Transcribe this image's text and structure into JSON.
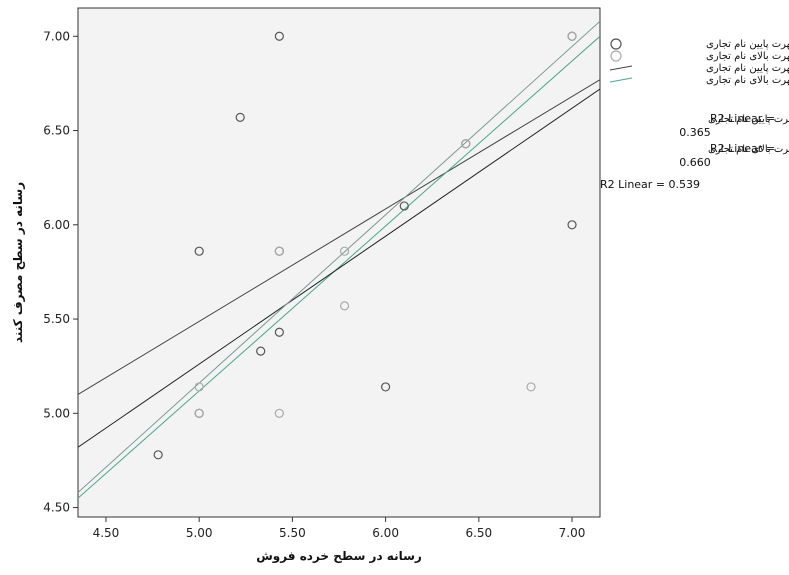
{
  "chart_data": {
    "type": "scatter",
    "xlabel": "رسانه در سطح خرده فروش",
    "ylabel": "رسانه در سطح مصرف كنند",
    "xlim": [
      4.35,
      7.15
    ],
    "ylim": [
      4.45,
      7.15
    ],
    "x_ticks": [
      "4.50",
      "5.00",
      "5.50",
      "6.00",
      "6.50",
      "7.00"
    ],
    "y_ticks": [
      "4.50",
      "5.00",
      "5.50",
      "6.00",
      "6.50",
      "7.00"
    ],
    "grid": false,
    "series": [
      {
        "name": "شهرت پايين نام تجاری",
        "marker": "circle",
        "color": "#555555",
        "points": [
          [
            5.43,
            7.0
          ],
          [
            7.0,
            7.0
          ],
          [
            5.22,
            6.57
          ],
          [
            6.43,
            6.43
          ],
          [
            6.1,
            6.1
          ],
          [
            7.0,
            6.0
          ],
          [
            5.0,
            5.86
          ],
          [
            5.43,
            5.86
          ],
          [
            5.43,
            5.43
          ],
          [
            5.33,
            5.33
          ],
          [
            5.0,
            5.0
          ],
          [
            4.78,
            4.78
          ],
          [
            6.0,
            5.14
          ]
        ]
      },
      {
        "name": "شهرت بالای نام تجاری",
        "marker": "circle",
        "color": "#aaaaaa",
        "points": [
          [
            7.0,
            7.0
          ],
          [
            6.43,
            6.43
          ],
          [
            5.78,
            5.86
          ],
          [
            5.78,
            5.57
          ],
          [
            5.0,
            5.14
          ],
          [
            5.43,
            5.0
          ],
          [
            6.78,
            5.14
          ],
          [
            5.0,
            5.0
          ],
          [
            5.43,
            5.86
          ]
        ]
      }
    ],
    "fit_lines": [
      {
        "name": "شهرت پايين نام تجاری",
        "color": "#444444",
        "x": [
          4.35,
          7.15
        ],
        "y": [
          5.1,
          6.77
        ]
      },
      {
        "name": "شهرت بالای نام تجاری",
        "color": "#4aa88c",
        "x": [
          4.35,
          7.15
        ],
        "y": [
          4.55,
          7.0
        ]
      },
      {
        "name": "",
        "color": "#222222",
        "x": [
          4.35,
          7.15
        ],
        "y": [
          4.82,
          6.72
        ]
      },
      {
        "name": "",
        "color": "#7a9a96",
        "x": [
          4.35,
          7.15
        ],
        "y": [
          4.58,
          7.08
        ]
      }
    ],
    "legend": {
      "placement": "top-right",
      "items": [
        {
          "label": "شهرت پايين نام تجاری",
          "kind": "marker",
          "color": "#555555"
        },
        {
          "label": "شهرت بالای نام تجاری",
          "kind": "marker",
          "color": "#aaaaaa"
        },
        {
          "label": "شهرت پايين نام تجاری",
          "kind": "line",
          "color": "#444444"
        },
        {
          "label": "شهرت بالای نام تجاری",
          "kind": "line",
          "color": "#4aa88c"
        }
      ]
    },
    "r2_annotations": [
      {
        "label": "شهرت پايين نام تجاری",
        "text": "R2 Linear =",
        "value": "0.365"
      },
      {
        "label": "شهرت بالای نام تجاری",
        "text": "R2 Linear =",
        "value": "0.660"
      },
      {
        "label": "",
        "text": "R2 Linear = 0.539",
        "value": ""
      }
    ]
  }
}
